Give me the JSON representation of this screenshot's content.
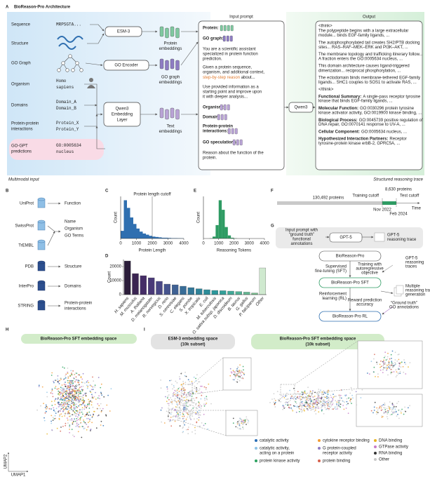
{
  "panel_a": {
    "letter": "A",
    "title": "BioReason-Pro Architecture",
    "inputs": [
      {
        "label": [
          "Sequence"
        ],
        "value": [
          "MRPSGTA..."
        ]
      },
      {
        "label": [
          "Structure"
        ]
      },
      {
        "label": [
          "GO Graph"
        ]
      },
      {
        "label": [
          "Organism"
        ],
        "value": [
          "Homo",
          "sapiens"
        ]
      },
      {
        "label": [
          "Domains"
        ],
        "value": [
          "Domain_A",
          "Domain_B"
        ]
      },
      {
        "label": [
          "Protein-protein",
          "interactions"
        ],
        "value": [
          "Protein_X",
          "Protein_Y"
        ]
      },
      {
        "label": [
          "GO-GPT",
          "predictions"
        ],
        "value": [
          "GO:0005634",
          "nucleus"
        ]
      }
    ],
    "encoders": [
      [
        "ESM-3"
      ],
      [
        "GO Encoder"
      ],
      [
        "Qwen3",
        "Embedding",
        "Layer"
      ]
    ],
    "embeddings": [
      [
        "Protein",
        "embeddings"
      ],
      [
        "GO graph",
        "embeddings"
      ],
      [
        "Text",
        "embeddings"
      ]
    ],
    "prompt_title": "Input prompt",
    "prompt": {
      "protein": "Protein:",
      "go_graph": "GO graph:",
      "system": [
        "You are a scientific assistant",
        "specialized in protein function",
        "prediction."
      ],
      "task": [
        "Given a protein sequence,",
        "organism, and additional context,"
      ],
      "task_highlight": "step-by-step reason",
      "task_tail": " about...",
      "improve": [
        "Use provided information as a",
        "starting point and improve upon",
        "it with deeper analysis..."
      ],
      "organism": "Organism:",
      "domain": "Domain:",
      "ppi": [
        "Protein-protein",
        "interactions:"
      ],
      "go_speculations": "GO speculations:",
      "reason": [
        "Reason about the function of the",
        "protein."
      ]
    },
    "model": "Qwen3",
    "output_title": "Output",
    "output": {
      "think_open": "<think>",
      "think_close": "</think>",
      "paragraphs": [
        [
          "The polypeptide begins with a large extracellular",
          "module... binds EGF-family ligands, ..."
        ],
        [
          "The autophosphorylated tail creates SH2/PTB docking",
          "sites... RAS–RAF–MEK–ERK and PI3K–AKT, ..."
        ],
        [
          "The membrane topology and trafficking itinerary follow...",
          "A fraction enters the GO:0005634 nucleus, ..."
        ],
        [
          "This domain architecture causes ligand-triggered",
          "dimerization... reciprocal phosphorylation, ..."
        ],
        [
          "The ectodomain binds membrane-tethered EGF-family",
          "ligands... SHC1 couples to SOS1 to activate RAS, ..."
        ]
      ],
      "summary": [
        {
          "label": "Functional Summary:",
          "text": [
            "A single-pass receptor tyrosine",
            "kinase that binds EGF-family ligands, ..."
          ]
        },
        {
          "label": "Molecular Function:",
          "text": [
            "GO:0030296 protein tyrosine",
            "kinase activator activity, GO:0019900 kinase binding, ..."
          ]
        },
        {
          "label": "Biological Process:",
          "text": [
            "GO:0045739 positive regulation of",
            "DNA repair, GO:0070141 response to UV-A, ..."
          ]
        },
        {
          "label": "Cellular Component:",
          "text": [
            "GO:0005634 nucleus, ..."
          ]
        },
        {
          "label": "Hypothesized Interaction Partners:",
          "text": [
            "Receptor",
            "tyrosine-protein kinase erbB-2, GPRC5A, ..."
          ]
        }
      ]
    },
    "footer_left": "Multimodal input",
    "footer_right": "Structured reasoning trace"
  },
  "panel_b": {
    "letter": "B",
    "databases": [
      "UniProt",
      "SwissProt",
      "TrEMBL",
      "PDB",
      "InterPro",
      "STRING"
    ],
    "outputs": [
      "Function",
      "Name",
      "Organism",
      "GO Terms",
      "Structure",
      "Domains",
      [
        "Protein-protein",
        "interactions"
      ]
    ]
  },
  "chart_data": [
    {
      "type": "histogram",
      "panel": "C",
      "xlabel": "Protein Length",
      "ylabel": "Count",
      "annotation": "Protein length cutoff",
      "cutoff": 2000,
      "color": "#2f6fb0",
      "bins": [
        0,
        200,
        400,
        600,
        800,
        1000,
        1200,
        1400,
        1600,
        1800,
        2000,
        2200,
        2400,
        2600,
        2800,
        3000,
        3200,
        3400,
        3600,
        3800,
        4000
      ],
      "values": [
        20,
        100,
        80,
        55,
        38,
        26,
        18,
        13,
        10,
        7,
        5,
        4,
        3,
        2,
        2,
        1.5,
        1,
        1,
        0.8,
        0.6
      ],
      "xlim": [
        0,
        4000
      ],
      "xticks": [
        0,
        1000,
        2000,
        3000,
        4000
      ],
      "ylim": [
        0,
        110
      ]
    },
    {
      "type": "histogram",
      "panel": "E",
      "xlabel": "Reasoning Tokens",
      "ylabel": "Count",
      "color": "#2e9b63",
      "bins": [
        0,
        200,
        400,
        600,
        800,
        1000,
        1200,
        1400,
        1600,
        1800,
        2000,
        2200,
        2400,
        2600,
        2800,
        3000,
        3200,
        3400,
        3600,
        3800,
        4000
      ],
      "values": [
        0,
        0,
        0.5,
        5,
        35,
        100,
        75,
        30,
        8,
        2,
        0.5,
        0,
        0,
        0,
        0,
        0,
        0,
        0,
        0,
        0
      ],
      "xlim": [
        0,
        4000
      ],
      "xticks": [
        0,
        1000,
        2000,
        3000,
        4000
      ],
      "ylim": [
        0,
        110
      ]
    },
    {
      "type": "bar",
      "panel": "D",
      "ylabel": "Count",
      "categories": [
        "H. sapiens",
        "M. musculus",
        "A. thaliana",
        "D. melanogaster",
        "R. norvegicus",
        "D. rerio",
        "S. cerevisiae",
        "C. elegans",
        "S. pombe",
        "X. tropicalis",
        "E. coli",
        "M. tuberculosis",
        "O. sativa subsp. japonica",
        "D. discoideum",
        "B. taurus",
        "G. gallus",
        "P. falciparum",
        "Other"
      ],
      "values": [
        24000,
        15000,
        13500,
        12000,
        9500,
        7500,
        7000,
        6000,
        5000,
        4200,
        3500,
        3000,
        2800,
        2500,
        2200,
        1800,
        1200,
        19000
      ],
      "colors": [
        "#2b1d3a",
        "#3a2552",
        "#452d66",
        "#4a3a78",
        "#4a4785",
        "#46548e",
        "#3f6193",
        "#386d97",
        "#337898",
        "#2f8399",
        "#2c8d9a",
        "#2c979b",
        "#34a09a",
        "#41a998",
        "#52b296",
        "#65ba94",
        "#7ac291",
        "#cfe9cf"
      ],
      "ylim": [
        0,
        25000
      ],
      "yticks": [
        0,
        10000,
        20000
      ]
    }
  ],
  "panel_f": {
    "letter": "F",
    "train_count": "130,492 proteins",
    "test_count": "8,630 proteins",
    "training_cutoff": "Training cutoff",
    "test_cutoff": "Test cutoff",
    "train_date": "Nov 2022",
    "test_date": "Feb 2024",
    "axis": "Time"
  },
  "panel_g": {
    "letter": "G",
    "input": [
      "Input prompt with",
      "“ground truth”",
      "functional",
      "annotations"
    ],
    "teacher": "GPT-5",
    "teacher_output": [
      "GPT-5",
      "reasoning trace"
    ],
    "base": "BioReason-Pro",
    "sft": [
      "Supervised",
      "fine-tuning (SFT)"
    ],
    "sft_objective": [
      "Training with",
      "autoregressive",
      "objective"
    ],
    "sft_data": [
      "GPT-5",
      "reasoning",
      "traces"
    ],
    "sft_model": "BioReason-Pro SFT",
    "rl": [
      "Reinforcement",
      "learning (RL)"
    ],
    "rl_generation": [
      "Multiple",
      "reasoning trace",
      "generation"
    ],
    "reward": [
      "Reward prediction",
      "accuracy"
    ],
    "rl_truth": [
      "“Ground truth”",
      "GO annotations"
    ],
    "rl_model": "BioReason-Pro RL"
  },
  "panel_h": {
    "letter": "H",
    "title": "BioReason-Pro SFT embedding space",
    "x_axis": "UMAP1",
    "y_axis": "UMAP2"
  },
  "panel_i": {
    "letter": "I",
    "left_title": [
      "ESM-3 embedding space",
      "(10k subset)"
    ],
    "right_title": [
      "BioReason-Pro SFT embedding space",
      "(10k subset)"
    ],
    "legend": [
      {
        "name": [
          "catalytic activity"
        ],
        "color": "#2c6fb6"
      },
      {
        "name": [
          "catalytic activity,",
          "acting on a protein"
        ],
        "color": "#8ec3e6"
      },
      {
        "name": [
          "protein kinase activity"
        ],
        "color": "#2ca25f"
      },
      {
        "name": [
          "cytokine receptor binding"
        ],
        "color": "#f39c34"
      },
      {
        "name": [
          "G protein-coupled",
          "receptor activity"
        ],
        "color": "#8e7cc3"
      },
      {
        "name": [
          "protein binding"
        ],
        "color": "#d6604d"
      },
      {
        "name": [
          "DNA binding"
        ],
        "color": "#e8b422"
      },
      {
        "name": [
          "GTPase activity"
        ],
        "color": "#c77cc7"
      },
      {
        "name": [
          "RNA binding"
        ],
        "color": "#333333"
      },
      {
        "name": [
          "Other"
        ],
        "color": "#c8c8c8"
      }
    ]
  }
}
